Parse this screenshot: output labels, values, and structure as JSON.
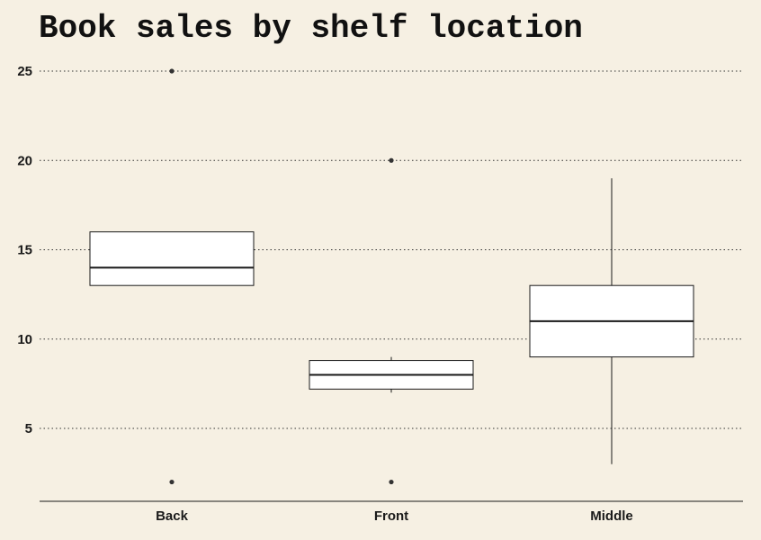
{
  "colors": {
    "background": "#f6f0e3",
    "box_fill": "#ffffff",
    "stroke": "#1a1a1a",
    "gridline": "#333333"
  },
  "chart_data": {
    "type": "box",
    "title": "Book sales by shelf location",
    "xlabel": "",
    "ylabel": "",
    "categories": [
      "Back",
      "Front",
      "Middle"
    ],
    "boxes": [
      {
        "category": "Back",
        "whisker_low": 13,
        "q1": 13,
        "median": 14,
        "q3": 16,
        "whisker_high": 16,
        "outliers": [
          2,
          25
        ]
      },
      {
        "category": "Front",
        "whisker_low": 7,
        "q1": 7.2,
        "median": 8,
        "q3": 8.8,
        "whisker_high": 9,
        "outliers": [
          2,
          20
        ]
      },
      {
        "category": "Middle",
        "whisker_low": 3,
        "q1": 9,
        "median": 11,
        "q3": 13,
        "whisker_high": 19,
        "outliers": []
      }
    ],
    "yticks": [
      5,
      10,
      15,
      20,
      25
    ],
    "ylim": [
      1,
      26
    ],
    "grid": "horizontal dotted",
    "legend": "none"
  }
}
